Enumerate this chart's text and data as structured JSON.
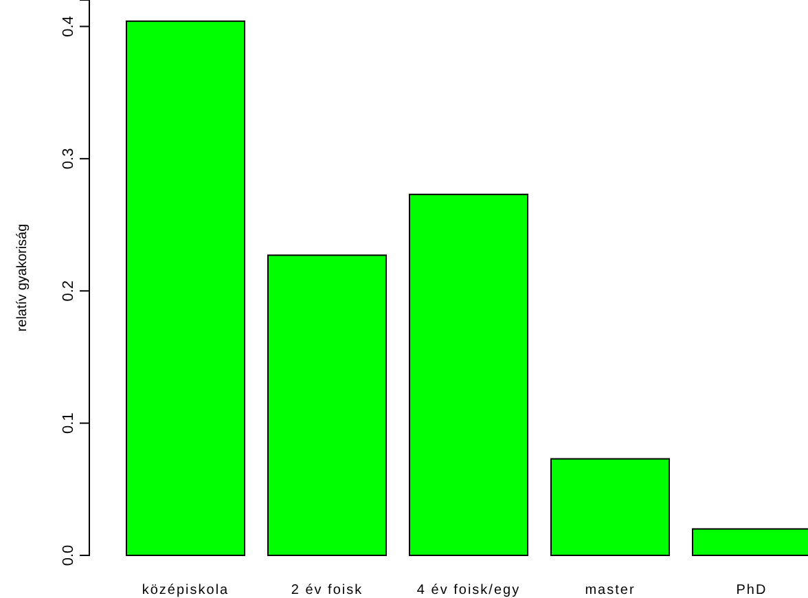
{
  "chart_data": {
    "type": "bar",
    "ylabel": "relatív gyakoriság",
    "categories": [
      "középiskola",
      "2 év foisk",
      "4 év foisk/egy",
      "master",
      "PhD"
    ],
    "values": [
      0.404,
      0.227,
      0.273,
      0.073,
      0.02
    ],
    "color": "#00ff00",
    "ylim": [
      0,
      0.42
    ],
    "yticks": [
      {
        "value": 0,
        "label": "0.0"
      },
      {
        "value": 0.1,
        "label": "0.1"
      },
      {
        "value": 0.2,
        "label": "0.2"
      },
      {
        "value": 0.3,
        "label": "0.3"
      },
      {
        "value": 0.4,
        "label": "0.4"
      }
    ]
  }
}
